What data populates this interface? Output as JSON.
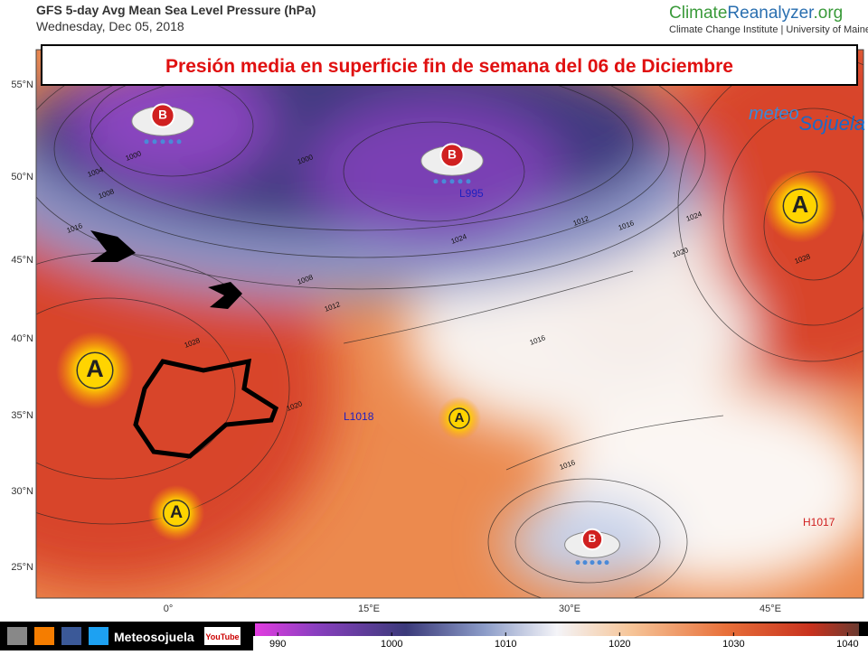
{
  "header": {
    "title": "GFS 5-day Avg Mean Sea Level Pressure (hPa)",
    "date": "Wednesday, Dec 05, 2018"
  },
  "logo": {
    "parts": [
      "Climate",
      "Reanalyzer",
      ".org"
    ],
    "subtitle": "Climate Change Institute | University of Maine"
  },
  "banner": "Presión media en superficie fin de semana del 06 de Diciembre",
  "watermark": [
    "meteo",
    "Sojuela"
  ],
  "map": {
    "lat_labels": [
      "55°N",
      "50°N",
      "45°N",
      "40°N",
      "35°N",
      "30°N",
      "25°N"
    ],
    "lon_labels": [
      "0°",
      "15°E",
      "30°E",
      "45°E"
    ],
    "centers": [
      "H1017",
      "L1018",
      "L995"
    ],
    "isobar_labels": [
      1000,
      1004,
      1008,
      1016,
      1000,
      1012,
      1008,
      1016,
      1020,
      1024,
      1028,
      1016,
      1012,
      1028,
      1024,
      1020,
      1016
    ],
    "symbols": [
      "A",
      "A",
      "A",
      "A",
      "B",
      "B",
      "B"
    ]
  },
  "colorbar": {
    "range": [
      988,
      1041
    ],
    "ticks": [
      990,
      1000,
      1010,
      1020,
      1030,
      1040
    ]
  },
  "footer": {
    "name": "Meteosojuela",
    "video": "YouTube"
  }
}
